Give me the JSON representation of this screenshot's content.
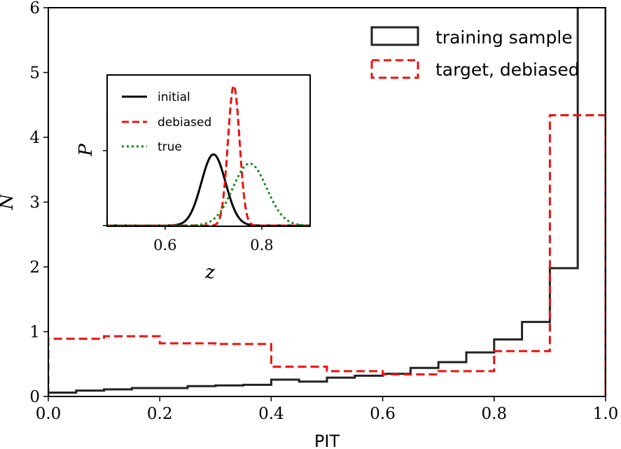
{
  "chart_data": [
    {
      "type": "histogram",
      "title": "",
      "xlabel": "PIT",
      "ylabel": "N",
      "xlim": [
        0.0,
        1.0
      ],
      "ylim": [
        0,
        6
      ],
      "xticks": [
        "0.0",
        "0.2",
        "0.4",
        "0.6",
        "0.8",
        "1.0"
      ],
      "yticks": [
        "0",
        "1",
        "2",
        "3",
        "4",
        "5",
        "6"
      ],
      "bin_edges": [
        0.0,
        0.05,
        0.1,
        0.15,
        0.2,
        0.25,
        0.3,
        0.35,
        0.4,
        0.45,
        0.5,
        0.55,
        0.6,
        0.65,
        0.7,
        0.75,
        0.8,
        0.85,
        0.9,
        0.95,
        1.0
      ],
      "series": [
        {
          "name": "training sample",
          "style": "solid",
          "color": "#222222",
          "values": [
            0.06,
            0.09,
            0.11,
            0.13,
            0.13,
            0.16,
            0.17,
            0.18,
            0.26,
            0.23,
            0.29,
            0.32,
            0.35,
            0.44,
            0.53,
            0.68,
            0.88,
            1.15,
            1.98,
            6.2
          ]
        },
        {
          "name": "target, debiased",
          "style": "dashed",
          "color": "#ee1111",
          "values": [
            0.89,
            0.89,
            0.93,
            0.93,
            0.82,
            0.82,
            0.81,
            0.81,
            0.46,
            0.46,
            0.39,
            0.39,
            0.34,
            0.34,
            0.39,
            0.39,
            0.7,
            0.7,
            4.34,
            4.34
          ]
        }
      ],
      "legend": {
        "position": "top-right"
      }
    },
    {
      "type": "line",
      "title": "",
      "xlabel": "z",
      "ylabel": "P",
      "xlim": [
        0.48,
        0.9
      ],
      "xticks": [
        "0.6",
        "0.8"
      ],
      "series": [
        {
          "name": "initial",
          "style": "solid",
          "color": "#000000",
          "mean": 0.7,
          "sigma": 0.025,
          "peak": 0.62
        },
        {
          "name": "debiased",
          "style": "dashed",
          "color": "#ee1111",
          "mean": 0.742,
          "sigma": 0.012,
          "peak": 1.22
        },
        {
          "name": "true",
          "style": "dotted",
          "color": "#118811",
          "mean": 0.775,
          "sigma": 0.035,
          "peak": 0.54
        }
      ],
      "legend": {
        "position": "top-left"
      }
    }
  ]
}
